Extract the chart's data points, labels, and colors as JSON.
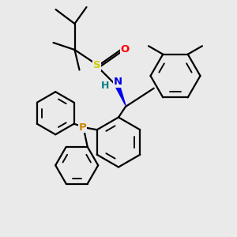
{
  "background_color": "#eaeaea",
  "atom_colors": {
    "S": "#cccc00",
    "O": "#ff0000",
    "N": "#0000ee",
    "H": "#008080",
    "P": "#cc8800",
    "C": "#000000"
  },
  "bond_color": "#000000",
  "bond_width": 1.6
}
